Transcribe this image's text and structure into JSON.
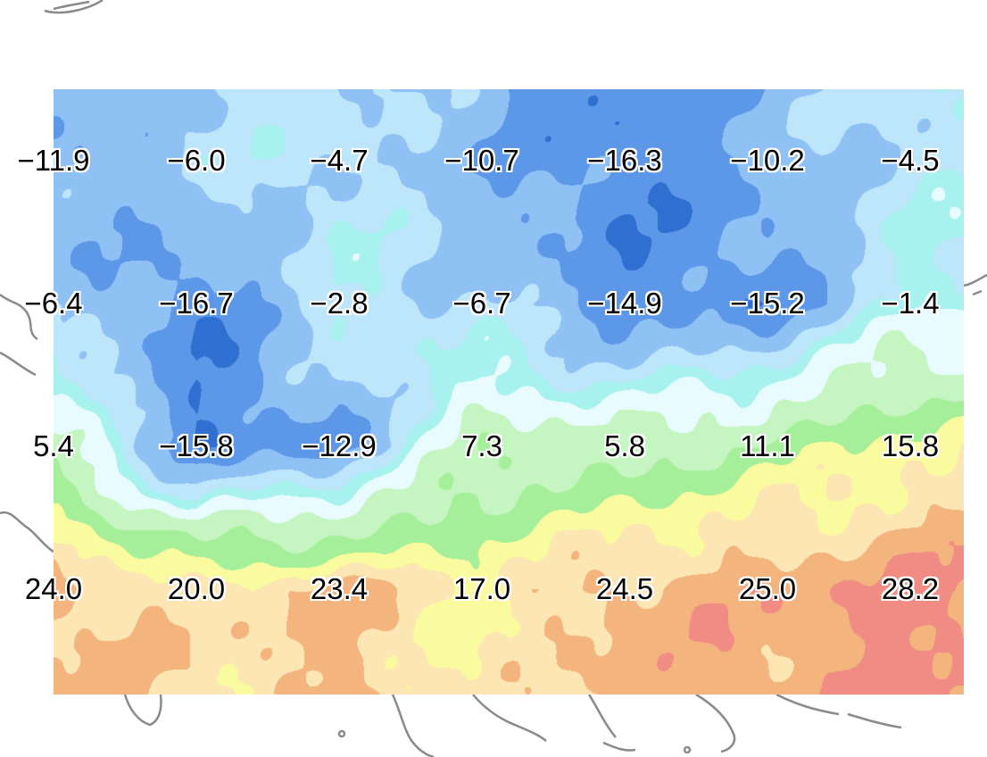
{
  "chart_data": {
    "type": "heatmap",
    "title": "",
    "rows": 4,
    "columns": 7,
    "values": [
      [
        "−11.9",
        "−6.0",
        "−4.7",
        "−10.7",
        "−16.3",
        "−10.2",
        "−4.5"
      ],
      [
        "−6.4",
        "−16.7",
        "−2.8",
        "−6.7",
        "−14.9",
        "−15.2",
        "−1.4"
      ],
      [
        "5.4",
        "−15.8",
        "−12.9",
        "7.3",
        "5.8",
        "11.1",
        "15.8"
      ],
      [
        "24.0",
        "20.0",
        "23.4",
        "17.0",
        "24.5",
        "25.0",
        "28.2"
      ]
    ],
    "color_scale": [
      "#0d3b8c",
      "#2f6fd0",
      "#5d98e8",
      "#8fc1f4",
      "#bde6fb",
      "#a7f2ee",
      "#e8fbff",
      "#c5f5c0",
      "#a6ef9a",
      "#fafb9e",
      "#fbe6b4",
      "#f4b47e",
      "#f08c84"
    ]
  },
  "colors": {
    "background": "#ffffff",
    "coastline": "#8a8a8a",
    "label_text": "#000000",
    "label_halo": "#ffffff"
  }
}
